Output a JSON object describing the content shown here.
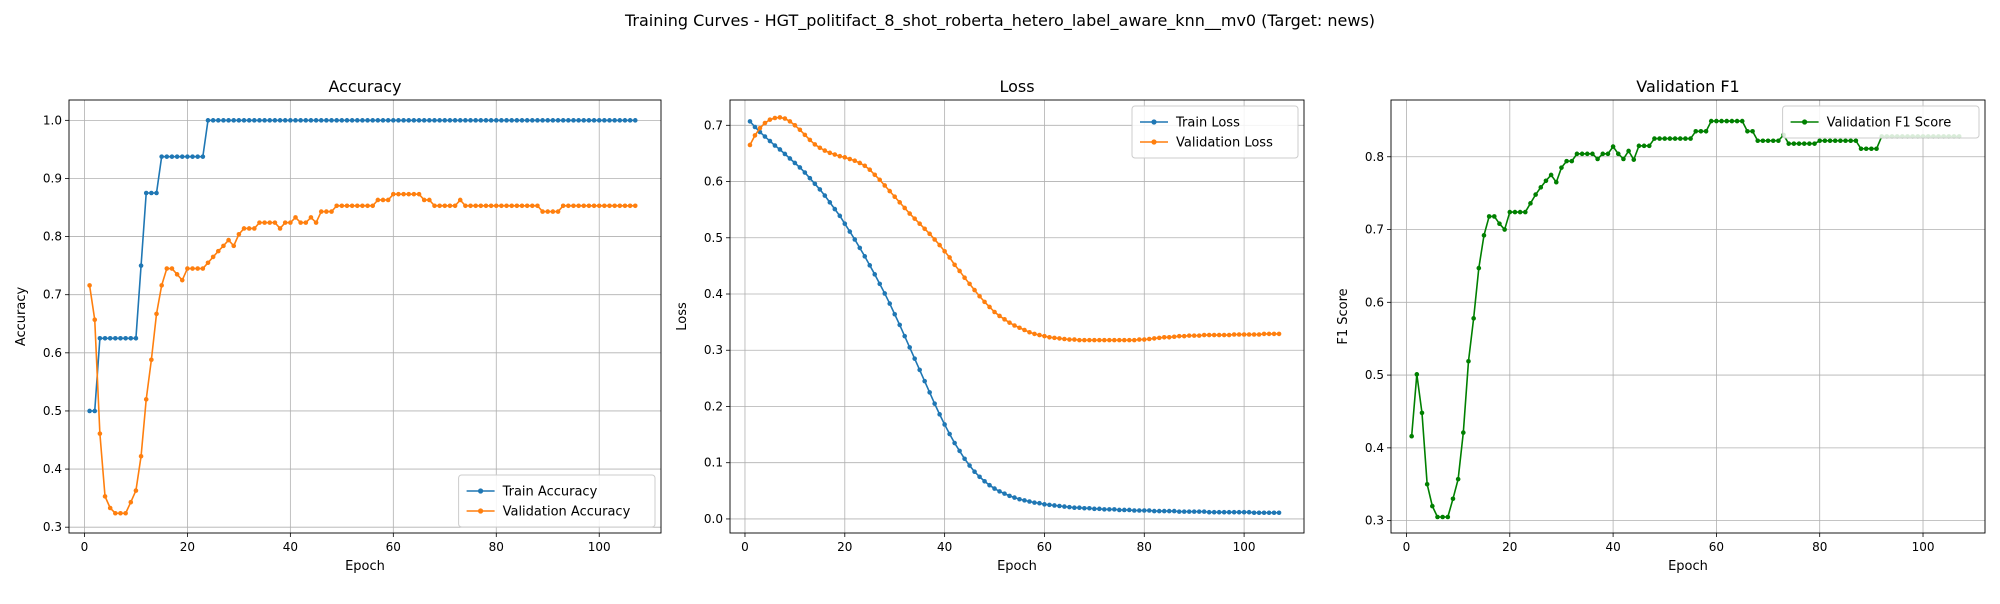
{
  "figure": {
    "suptitle": "Training Curves - HGT_politifact_8_shot_roberta_hetero_label_aware_knn__mv0 (Target: news)"
  },
  "colors": {
    "blue": "#1f77b4",
    "orange": "#ff7f0e",
    "green": "#008000",
    "grid": "#b0b0b0"
  },
  "chart_data": [
    {
      "type": "line",
      "title": "Accuracy",
      "xlabel": "Epoch",
      "ylabel": "Accuracy",
      "xlim": [
        -3,
        112
      ],
      "ylim": [
        0.29,
        1.035
      ],
      "xticks": [
        0,
        20,
        40,
        60,
        80,
        100
      ],
      "yticks": [
        0.3,
        0.4,
        0.5,
        0.6,
        0.7,
        0.8,
        0.9,
        1.0
      ],
      "ytick_labels": [
        "0.3",
        "0.4",
        "0.5",
        "0.6",
        "0.7",
        "0.8",
        "0.9",
        "1.0"
      ],
      "grid": true,
      "legend_position": "lower-right",
      "x": [
        1,
        2,
        3,
        4,
        5,
        6,
        7,
        8,
        9,
        10,
        11,
        12,
        13,
        14,
        15,
        16,
        17,
        18,
        19,
        20,
        21,
        22,
        23,
        24,
        25,
        26,
        27,
        28,
        29,
        30,
        31,
        32,
        33,
        34,
        35,
        36,
        37,
        38,
        39,
        40,
        41,
        42,
        43,
        44,
        45,
        46,
        47,
        48,
        49,
        50,
        51,
        52,
        53,
        54,
        55,
        56,
        57,
        58,
        59,
        60,
        61,
        62,
        63,
        64,
        65,
        66,
        67,
        68,
        69,
        70,
        71,
        72,
        73,
        74,
        75,
        76,
        77,
        78,
        79,
        80,
        81,
        82,
        83,
        84,
        85,
        86,
        87,
        88,
        89,
        90,
        91,
        92,
        93,
        94,
        95,
        96,
        97,
        98,
        99,
        100,
        101,
        102,
        103,
        104,
        105,
        106,
        107
      ],
      "series": [
        {
          "name": "Train Accuracy",
          "color": "#1f77b4",
          "values": [
            0.5,
            0.5,
            0.625,
            0.625,
            0.625,
            0.625,
            0.625,
            0.625,
            0.625,
            0.625,
            0.75,
            0.875,
            0.875,
            0.875,
            0.9375,
            0.9375,
            0.9375,
            0.9375,
            0.9375,
            0.9375,
            0.9375,
            0.9375,
            0.9375,
            1.0,
            1.0,
            1.0,
            1.0,
            1.0,
            1.0,
            1.0,
            1.0,
            1.0,
            1.0,
            1.0,
            1.0,
            1.0,
            1.0,
            1.0,
            1.0,
            1.0,
            1.0,
            1.0,
            1.0,
            1.0,
            1.0,
            1.0,
            1.0,
            1.0,
            1.0,
            1.0,
            1.0,
            1.0,
            1.0,
            1.0,
            1.0,
            1.0,
            1.0,
            1.0,
            1.0,
            1.0,
            1.0,
            1.0,
            1.0,
            1.0,
            1.0,
            1.0,
            1.0,
            1.0,
            1.0,
            1.0,
            1.0,
            1.0,
            1.0,
            1.0,
            1.0,
            1.0,
            1.0,
            1.0,
            1.0,
            1.0,
            1.0,
            1.0,
            1.0,
            1.0,
            1.0,
            1.0,
            1.0,
            1.0,
            1.0,
            1.0,
            1.0,
            1.0,
            1.0,
            1.0,
            1.0,
            1.0,
            1.0,
            1.0,
            1.0,
            1.0,
            1.0,
            1.0,
            1.0,
            1.0,
            1.0,
            1.0,
            1.0
          ]
        },
        {
          "name": "Validation Accuracy",
          "color": "#ff7f0e",
          "values": [
            0.716,
            0.657,
            0.461,
            0.353,
            0.333,
            0.324,
            0.324,
            0.324,
            0.343,
            0.363,
            0.422,
            0.52,
            0.588,
            0.667,
            0.716,
            0.745,
            0.745,
            0.735,
            0.725,
            0.745,
            0.745,
            0.745,
            0.745,
            0.755,
            0.765,
            0.775,
            0.784,
            0.794,
            0.784,
            0.804,
            0.814,
            0.814,
            0.814,
            0.824,
            0.824,
            0.824,
            0.824,
            0.814,
            0.824,
            0.824,
            0.833,
            0.824,
            0.824,
            0.833,
            0.824,
            0.843,
            0.843,
            0.843,
            0.853,
            0.853,
            0.853,
            0.853,
            0.853,
            0.853,
            0.853,
            0.853,
            0.863,
            0.863,
            0.863,
            0.873,
            0.873,
            0.873,
            0.873,
            0.873,
            0.873,
            0.863,
            0.863,
            0.853,
            0.853,
            0.853,
            0.853,
            0.853,
            0.863,
            0.853,
            0.853,
            0.853,
            0.853,
            0.853,
            0.853,
            0.853,
            0.853,
            0.853,
            0.853,
            0.853,
            0.853,
            0.853,
            0.853,
            0.853,
            0.843,
            0.843,
            0.843,
            0.843,
            0.853,
            0.853,
            0.853,
            0.853,
            0.853,
            0.853,
            0.853,
            0.853,
            0.853,
            0.853,
            0.853,
            0.853,
            0.853,
            0.853,
            0.853
          ]
        }
      ]
    },
    {
      "type": "line",
      "title": "Loss",
      "xlabel": "Epoch",
      "ylabel": "Loss",
      "xlim": [
        -3,
        112
      ],
      "ylim": [
        -0.025,
        0.745
      ],
      "xticks": [
        0,
        20,
        40,
        60,
        80,
        100
      ],
      "yticks": [
        0.0,
        0.1,
        0.2,
        0.3,
        0.4,
        0.5,
        0.6,
        0.7
      ],
      "ytick_labels": [
        "0.0",
        "0.1",
        "0.2",
        "0.3",
        "0.4",
        "0.5",
        "0.6",
        "0.7"
      ],
      "grid": true,
      "legend_position": "upper-right",
      "x": [
        1,
        2,
        3,
        4,
        5,
        6,
        7,
        8,
        9,
        10,
        11,
        12,
        13,
        14,
        15,
        16,
        17,
        18,
        19,
        20,
        21,
        22,
        23,
        24,
        25,
        26,
        27,
        28,
        29,
        30,
        31,
        32,
        33,
        34,
        35,
        36,
        37,
        38,
        39,
        40,
        41,
        42,
        43,
        44,
        45,
        46,
        47,
        48,
        49,
        50,
        51,
        52,
        53,
        54,
        55,
        56,
        57,
        58,
        59,
        60,
        61,
        62,
        63,
        64,
        65,
        66,
        67,
        68,
        69,
        70,
        71,
        72,
        73,
        74,
        75,
        76,
        77,
        78,
        79,
        80,
        81,
        82,
        83,
        84,
        85,
        86,
        87,
        88,
        89,
        90,
        91,
        92,
        93,
        94,
        95,
        96,
        97,
        98,
        99,
        100,
        101,
        102,
        103,
        104,
        105,
        106,
        107
      ],
      "series": [
        {
          "name": "Train Loss",
          "color": "#1f77b4",
          "values": [
            0.707,
            0.697,
            0.688,
            0.68,
            0.672,
            0.664,
            0.657,
            0.649,
            0.641,
            0.633,
            0.625,
            0.616,
            0.606,
            0.596,
            0.586,
            0.575,
            0.563,
            0.551,
            0.539,
            0.525,
            0.511,
            0.497,
            0.482,
            0.467,
            0.451,
            0.435,
            0.418,
            0.401,
            0.383,
            0.364,
            0.345,
            0.325,
            0.305,
            0.285,
            0.265,
            0.245,
            0.225,
            0.205,
            0.186,
            0.168,
            0.151,
            0.135,
            0.121,
            0.107,
            0.095,
            0.084,
            0.075,
            0.067,
            0.06,
            0.054,
            0.049,
            0.045,
            0.041,
            0.038,
            0.035,
            0.033,
            0.031,
            0.029,
            0.028,
            0.026,
            0.025,
            0.024,
            0.023,
            0.022,
            0.021,
            0.02,
            0.02,
            0.019,
            0.019,
            0.018,
            0.018,
            0.017,
            0.017,
            0.017,
            0.016,
            0.016,
            0.016,
            0.015,
            0.015,
            0.015,
            0.015,
            0.014,
            0.014,
            0.014,
            0.014,
            0.014,
            0.013,
            0.013,
            0.013,
            0.013,
            0.013,
            0.013,
            0.012,
            0.012,
            0.012,
            0.012,
            0.012,
            0.012,
            0.012,
            0.012,
            0.012,
            0.011,
            0.011,
            0.011,
            0.011,
            0.011,
            0.011
          ]
        },
        {
          "name": "Validation Loss",
          "color": "#ff7f0e",
          "values": [
            0.665,
            0.682,
            0.695,
            0.704,
            0.71,
            0.713,
            0.714,
            0.712,
            0.707,
            0.7,
            0.692,
            0.683,
            0.674,
            0.666,
            0.66,
            0.655,
            0.651,
            0.648,
            0.645,
            0.643,
            0.64,
            0.637,
            0.633,
            0.628,
            0.621,
            0.612,
            0.603,
            0.593,
            0.583,
            0.573,
            0.563,
            0.553,
            0.543,
            0.534,
            0.525,
            0.516,
            0.507,
            0.497,
            0.487,
            0.476,
            0.465,
            0.452,
            0.441,
            0.429,
            0.418,
            0.407,
            0.396,
            0.386,
            0.377,
            0.368,
            0.361,
            0.355,
            0.349,
            0.344,
            0.34,
            0.336,
            0.332,
            0.329,
            0.327,
            0.325,
            0.323,
            0.322,
            0.321,
            0.32,
            0.319,
            0.319,
            0.318,
            0.318,
            0.318,
            0.318,
            0.318,
            0.318,
            0.318,
            0.318,
            0.318,
            0.318,
            0.318,
            0.318,
            0.319,
            0.319,
            0.32,
            0.321,
            0.322,
            0.323,
            0.323,
            0.324,
            0.325,
            0.325,
            0.326,
            0.326,
            0.326,
            0.327,
            0.327,
            0.327,
            0.327,
            0.327,
            0.327,
            0.328,
            0.328,
            0.328,
            0.328,
            0.328,
            0.328,
            0.329,
            0.329,
            0.329,
            0.329
          ]
        }
      ]
    },
    {
      "type": "line",
      "title": "Validation F1",
      "xlabel": "Epoch",
      "ylabel": "F1 Score",
      "xlim": [
        -3,
        112
      ],
      "ylim": [
        0.283,
        0.878
      ],
      "xticks": [
        0,
        20,
        40,
        60,
        80,
        100
      ],
      "yticks": [
        0.3,
        0.4,
        0.5,
        0.6,
        0.7,
        0.8
      ],
      "ytick_labels": [
        "0.3",
        "0.4",
        "0.5",
        "0.6",
        "0.7",
        "0.8"
      ],
      "grid": true,
      "legend_position": "upper-right",
      "x": [
        1,
        2,
        3,
        4,
        5,
        6,
        7,
        8,
        9,
        10,
        11,
        12,
        13,
        14,
        15,
        16,
        17,
        18,
        19,
        20,
        21,
        22,
        23,
        24,
        25,
        26,
        27,
        28,
        29,
        30,
        31,
        32,
        33,
        34,
        35,
        36,
        37,
        38,
        39,
        40,
        41,
        42,
        43,
        44,
        45,
        46,
        47,
        48,
        49,
        50,
        51,
        52,
        53,
        54,
        55,
        56,
        57,
        58,
        59,
        60,
        61,
        62,
        63,
        64,
        65,
        66,
        67,
        68,
        69,
        70,
        71,
        72,
        73,
        74,
        75,
        76,
        77,
        78,
        79,
        80,
        81,
        82,
        83,
        84,
        85,
        86,
        87,
        88,
        89,
        90,
        91,
        92,
        93,
        94,
        95,
        96,
        97,
        98,
        99,
        100,
        101,
        102,
        103,
        104,
        105,
        106,
        107
      ],
      "series": [
        {
          "name": "Validation F1 Score",
          "color": "#008000",
          "values": [
            0.416,
            0.501,
            0.448,
            0.35,
            0.32,
            0.305,
            0.305,
            0.305,
            0.33,
            0.357,
            0.421,
            0.519,
            0.578,
            0.647,
            0.692,
            0.718,
            0.718,
            0.708,
            0.7,
            0.724,
            0.724,
            0.724,
            0.724,
            0.736,
            0.748,
            0.758,
            0.767,
            0.775,
            0.765,
            0.785,
            0.794,
            0.794,
            0.804,
            0.804,
            0.804,
            0.804,
            0.797,
            0.804,
            0.804,
            0.814,
            0.804,
            0.797,
            0.808,
            0.796,
            0.815,
            0.815,
            0.815,
            0.825,
            0.825,
            0.825,
            0.825,
            0.825,
            0.825,
            0.825,
            0.825,
            0.835,
            0.835,
            0.835,
            0.849,
            0.849,
            0.849,
            0.849,
            0.849,
            0.849,
            0.849,
            0.835,
            0.835,
            0.822,
            0.822,
            0.822,
            0.822,
            0.822,
            0.83,
            0.818,
            0.818,
            0.818,
            0.818,
            0.818,
            0.818,
            0.822,
            0.822,
            0.822,
            0.822,
            0.822,
            0.822,
            0.822,
            0.822,
            0.811,
            0.811,
            0.811,
            0.811,
            0.828,
            0.828,
            0.828,
            0.828,
            0.828,
            0.828,
            0.828,
            0.828,
            0.828,
            0.828,
            0.828,
            0.828,
            0.828,
            0.828,
            0.828,
            0.828
          ]
        }
      ]
    }
  ]
}
